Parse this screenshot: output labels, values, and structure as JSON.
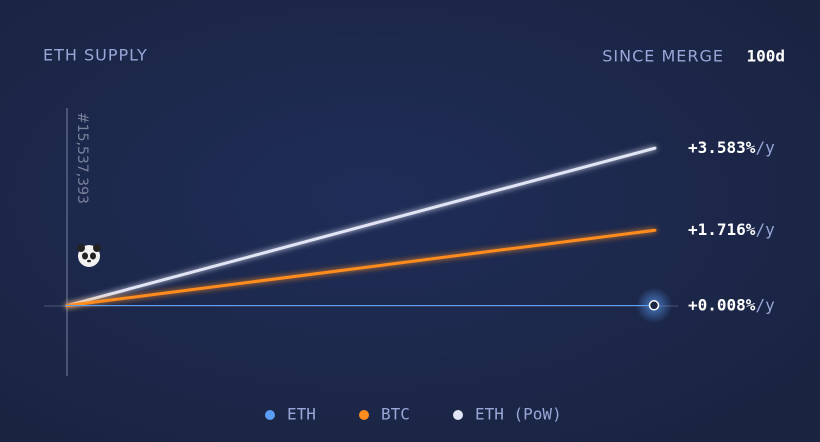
{
  "chart_data": {
    "type": "line",
    "title": "ETH SUPPLY",
    "period_label": "SINCE MERGE",
    "period": "100d",
    "marker_label": "#15,537,393",
    "rate_unit": "/y",
    "ylim": [
      -1.6,
      4.45
    ],
    "series": [
      {
        "name": "ETH",
        "color": "#5a9ef5",
        "values": [
          0,
          0.008
        ],
        "value_labels": [
          null,
          "+0.008%"
        ]
      },
      {
        "name": "BTC",
        "color": "#ff8c1f",
        "values": [
          0,
          1.716
        ],
        "value_labels": [
          null,
          "+1.716%"
        ]
      },
      {
        "name": "ETH (PoW)",
        "color": "#e2e5f6",
        "values": [
          0,
          3.583
        ],
        "value_labels": [
          null,
          "+3.583%"
        ]
      }
    ]
  }
}
